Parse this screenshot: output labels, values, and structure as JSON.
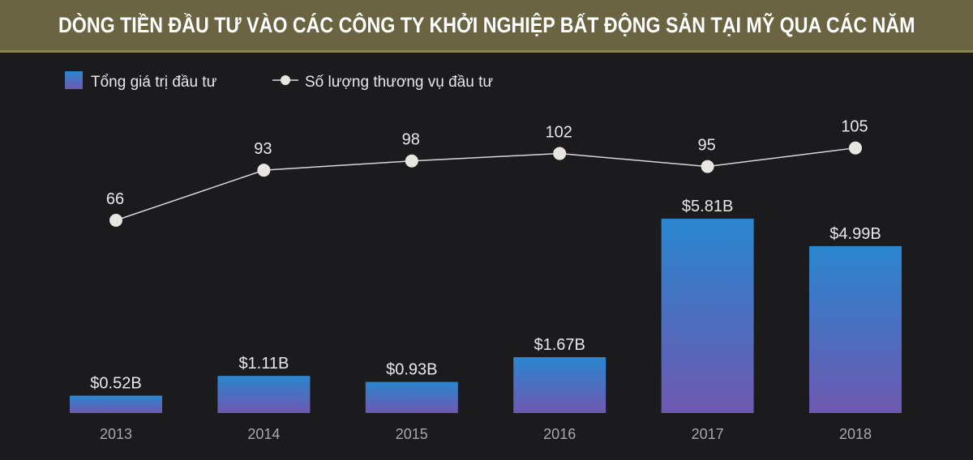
{
  "title": "DÒNG TIỀN ĐẦU TƯ VÀO CÁC CÔNG TY KHỞI NGHIỆP BẤT ĐỘNG SẢN TẠI MỸ QUA CÁC NĂM",
  "colors": {
    "title_bg": "#6a6443",
    "background": "#1b1b1d",
    "bar_top": "#2a86cf",
    "bar_bottom": "#6e58b0",
    "line": "#d9d9d9",
    "text": "#e8e8e8",
    "axis_text": "#a8a8a8"
  },
  "legend": {
    "bars_label": "Tổng giá trị đầu tư",
    "line_label": "Số lượng thương vụ đầu tư"
  },
  "chart_data": {
    "type": "bar",
    "categories": [
      "2013",
      "2014",
      "2015",
      "2016",
      "2017",
      "2018"
    ],
    "series": [
      {
        "name": "Tổng giá trị đầu tư",
        "type": "bar",
        "values": [
          0.52,
          1.11,
          0.93,
          1.67,
          5.81,
          4.99
        ],
        "labels": [
          "$0.52B",
          "$1.11B",
          "$0.93B",
          "$1.67B",
          "$5.81B",
          "$4.99B"
        ]
      },
      {
        "name": "Số lượng thương vụ đầu tư",
        "type": "line",
        "values": [
          66,
          93,
          98,
          102,
          95,
          105
        ],
        "labels": [
          "66",
          "93",
          "98",
          "102",
          "95",
          "105"
        ]
      }
    ],
    "legend_position": "top-left",
    "grid": false
  }
}
